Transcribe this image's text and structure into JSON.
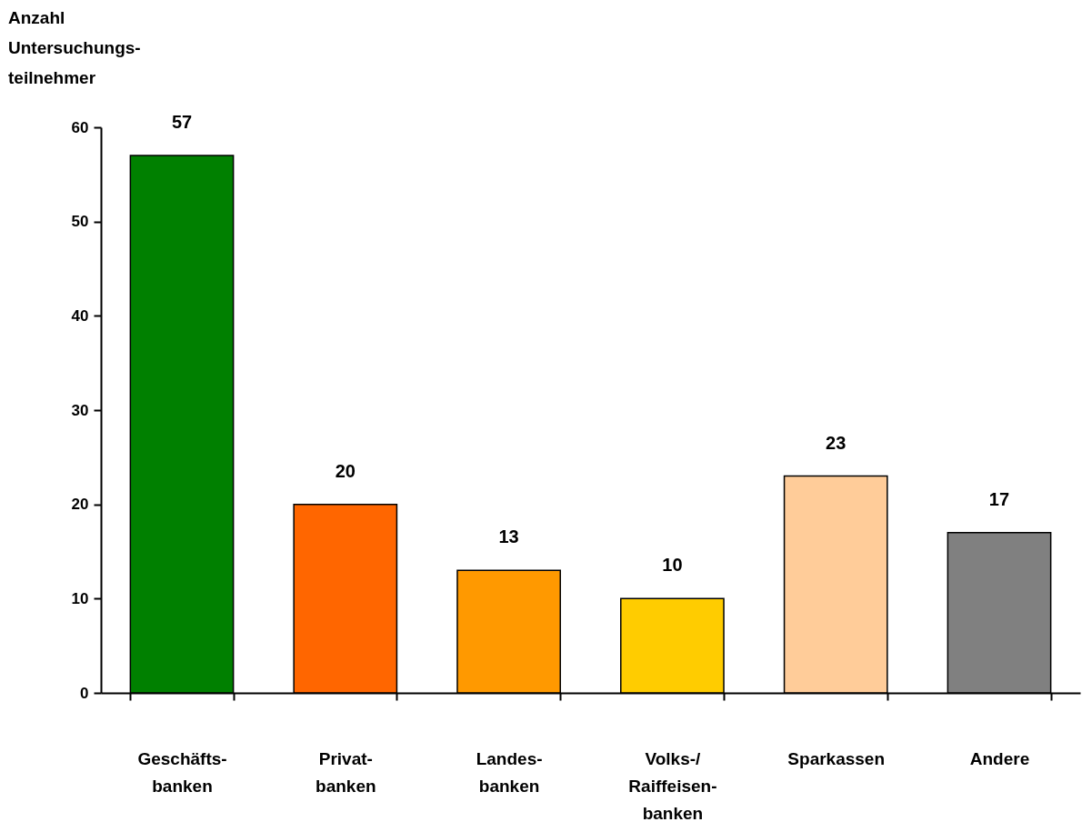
{
  "chart_data": {
    "type": "bar",
    "ylabel": "Anzahl\nUntersuchungs-\nteilnehmer",
    "categories": [
      "Geschäfts-\nbanken",
      "Privat-\nbanken",
      "Landes-\nbanken",
      "Volks-/\nRaiffeisen-\nbanken",
      "Sparkassen",
      "Andere"
    ],
    "values": [
      57,
      20,
      13,
      10,
      23,
      17
    ],
    "colors": [
      "#008000",
      "#ff6600",
      "#ff9900",
      "#ffcc00",
      "#ffcc99",
      "#808080"
    ],
    "ylim": [
      0,
      60
    ],
    "yticks": [
      0,
      10,
      20,
      30,
      40,
      50,
      60
    ],
    "data_labels": true
  }
}
